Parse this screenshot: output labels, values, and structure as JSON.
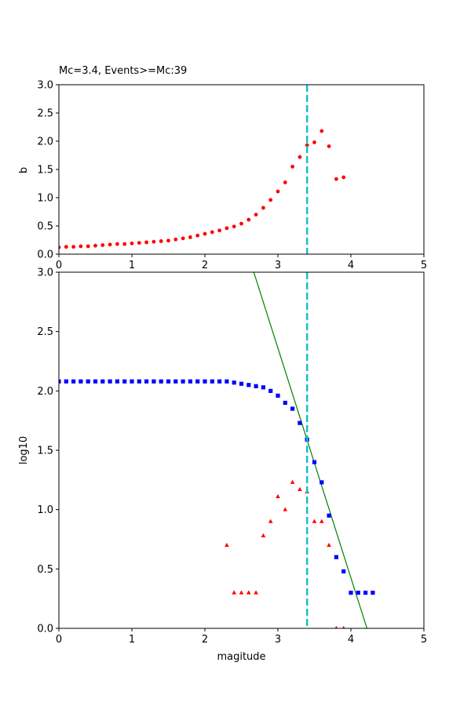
{
  "chart_data": [
    {
      "type": "scatter",
      "title": "Mc=3.4, Events>=Mc:39",
      "xlabel": "",
      "ylabel": "b",
      "xlim": [
        0,
        5
      ],
      "ylim": [
        0,
        3
      ],
      "xticks": [
        "0",
        "1",
        "2",
        "3",
        "4",
        "5"
      ],
      "yticks": [
        "0.0",
        "0.5",
        "1.0",
        "1.5",
        "2.0",
        "2.5",
        "3.0"
      ],
      "grid": false,
      "series": [
        {
          "marker": "circle",
          "color": "#ff0000",
          "points": [
            [
              0.0,
              0.12
            ],
            [
              0.1,
              0.13
            ],
            [
              0.2,
              0.13
            ],
            [
              0.3,
              0.14
            ],
            [
              0.4,
              0.14
            ],
            [
              0.5,
              0.15
            ],
            [
              0.6,
              0.16
            ],
            [
              0.7,
              0.17
            ],
            [
              0.8,
              0.18
            ],
            [
              0.9,
              0.18
            ],
            [
              1.0,
              0.19
            ],
            [
              1.1,
              0.2
            ],
            [
              1.2,
              0.21
            ],
            [
              1.3,
              0.22
            ],
            [
              1.4,
              0.23
            ],
            [
              1.5,
              0.24
            ],
            [
              1.6,
              0.26
            ],
            [
              1.7,
              0.28
            ],
            [
              1.8,
              0.3
            ],
            [
              1.9,
              0.33
            ],
            [
              2.0,
              0.36
            ],
            [
              2.1,
              0.39
            ],
            [
              2.2,
              0.42
            ],
            [
              2.3,
              0.46
            ],
            [
              2.4,
              0.49
            ],
            [
              2.5,
              0.54
            ],
            [
              2.6,
              0.61
            ],
            [
              2.7,
              0.7
            ],
            [
              2.8,
              0.82
            ],
            [
              2.9,
              0.96
            ],
            [
              3.0,
              1.11
            ],
            [
              3.1,
              1.27
            ],
            [
              3.2,
              1.55
            ],
            [
              3.3,
              1.72
            ],
            [
              3.4,
              1.93
            ],
            [
              3.5,
              1.98
            ],
            [
              3.6,
              2.18
            ],
            [
              3.7,
              1.91
            ],
            [
              3.8,
              1.33
            ],
            [
              3.9,
              1.36
            ]
          ]
        }
      ],
      "vline": {
        "x": 3.4,
        "color": "#17becf",
        "style": "dashed"
      }
    },
    {
      "type": "scatter",
      "title": "",
      "xlabel": "magitude",
      "ylabel": "log10",
      "xlim": [
        0,
        5
      ],
      "ylim": [
        0,
        3
      ],
      "xticks": [
        "0",
        "1",
        "2",
        "3",
        "4",
        "5"
      ],
      "yticks": [
        "0.0",
        "0.5",
        "1.0",
        "1.5",
        "2.0",
        "2.5",
        "3.0"
      ],
      "grid": false,
      "series": [
        {
          "marker": "square",
          "color": "#0000ff",
          "points": [
            [
              0.0,
              2.08
            ],
            [
              0.1,
              2.08
            ],
            [
              0.2,
              2.08
            ],
            [
              0.3,
              2.08
            ],
            [
              0.4,
              2.08
            ],
            [
              0.5,
              2.08
            ],
            [
              0.6,
              2.08
            ],
            [
              0.7,
              2.08
            ],
            [
              0.8,
              2.08
            ],
            [
              0.9,
              2.08
            ],
            [
              1.0,
              2.08
            ],
            [
              1.1,
              2.08
            ],
            [
              1.2,
              2.08
            ],
            [
              1.3,
              2.08
            ],
            [
              1.4,
              2.08
            ],
            [
              1.5,
              2.08
            ],
            [
              1.6,
              2.08
            ],
            [
              1.7,
              2.08
            ],
            [
              1.8,
              2.08
            ],
            [
              1.9,
              2.08
            ],
            [
              2.0,
              2.08
            ],
            [
              2.1,
              2.08
            ],
            [
              2.2,
              2.08
            ],
            [
              2.3,
              2.08
            ],
            [
              2.4,
              2.07
            ],
            [
              2.5,
              2.06
            ],
            [
              2.6,
              2.05
            ],
            [
              2.7,
              2.04
            ],
            [
              2.8,
              2.03
            ],
            [
              2.9,
              2.0
            ],
            [
              3.0,
              1.96
            ],
            [
              3.1,
              1.9
            ],
            [
              3.2,
              1.85
            ],
            [
              3.3,
              1.73
            ],
            [
              3.4,
              1.59
            ],
            [
              3.5,
              1.4
            ],
            [
              3.6,
              1.23
            ],
            [
              3.7,
              0.95
            ],
            [
              3.8,
              0.6
            ],
            [
              3.9,
              0.48
            ],
            [
              4.0,
              0.3
            ],
            [
              4.1,
              0.3
            ],
            [
              4.2,
              0.3
            ],
            [
              4.3,
              0.3
            ]
          ]
        },
        {
          "marker": "triangle",
          "color": "#ff0000",
          "points": [
            [
              2.3,
              0.7
            ],
            [
              2.4,
              0.3
            ],
            [
              2.5,
              0.3
            ],
            [
              2.6,
              0.3
            ],
            [
              2.7,
              0.3
            ],
            [
              2.8,
              0.78
            ],
            [
              2.9,
              0.9
            ],
            [
              3.0,
              1.11
            ],
            [
              3.1,
              1.0
            ],
            [
              3.2,
              1.23
            ],
            [
              3.3,
              1.17
            ],
            [
              3.4,
              1.15
            ],
            [
              3.5,
              0.9
            ],
            [
              3.6,
              0.9
            ],
            [
              3.7,
              0.7
            ],
            [
              3.8,
              0.0
            ],
            [
              3.9,
              0.0
            ]
          ]
        }
      ],
      "fit_line": {
        "color": "#008000",
        "points": [
          [
            2.67,
            3.0
          ],
          [
            4.22,
            0.0
          ]
        ]
      },
      "vline": {
        "x": 3.4,
        "color": "#17becf",
        "style": "dashed"
      }
    }
  ]
}
